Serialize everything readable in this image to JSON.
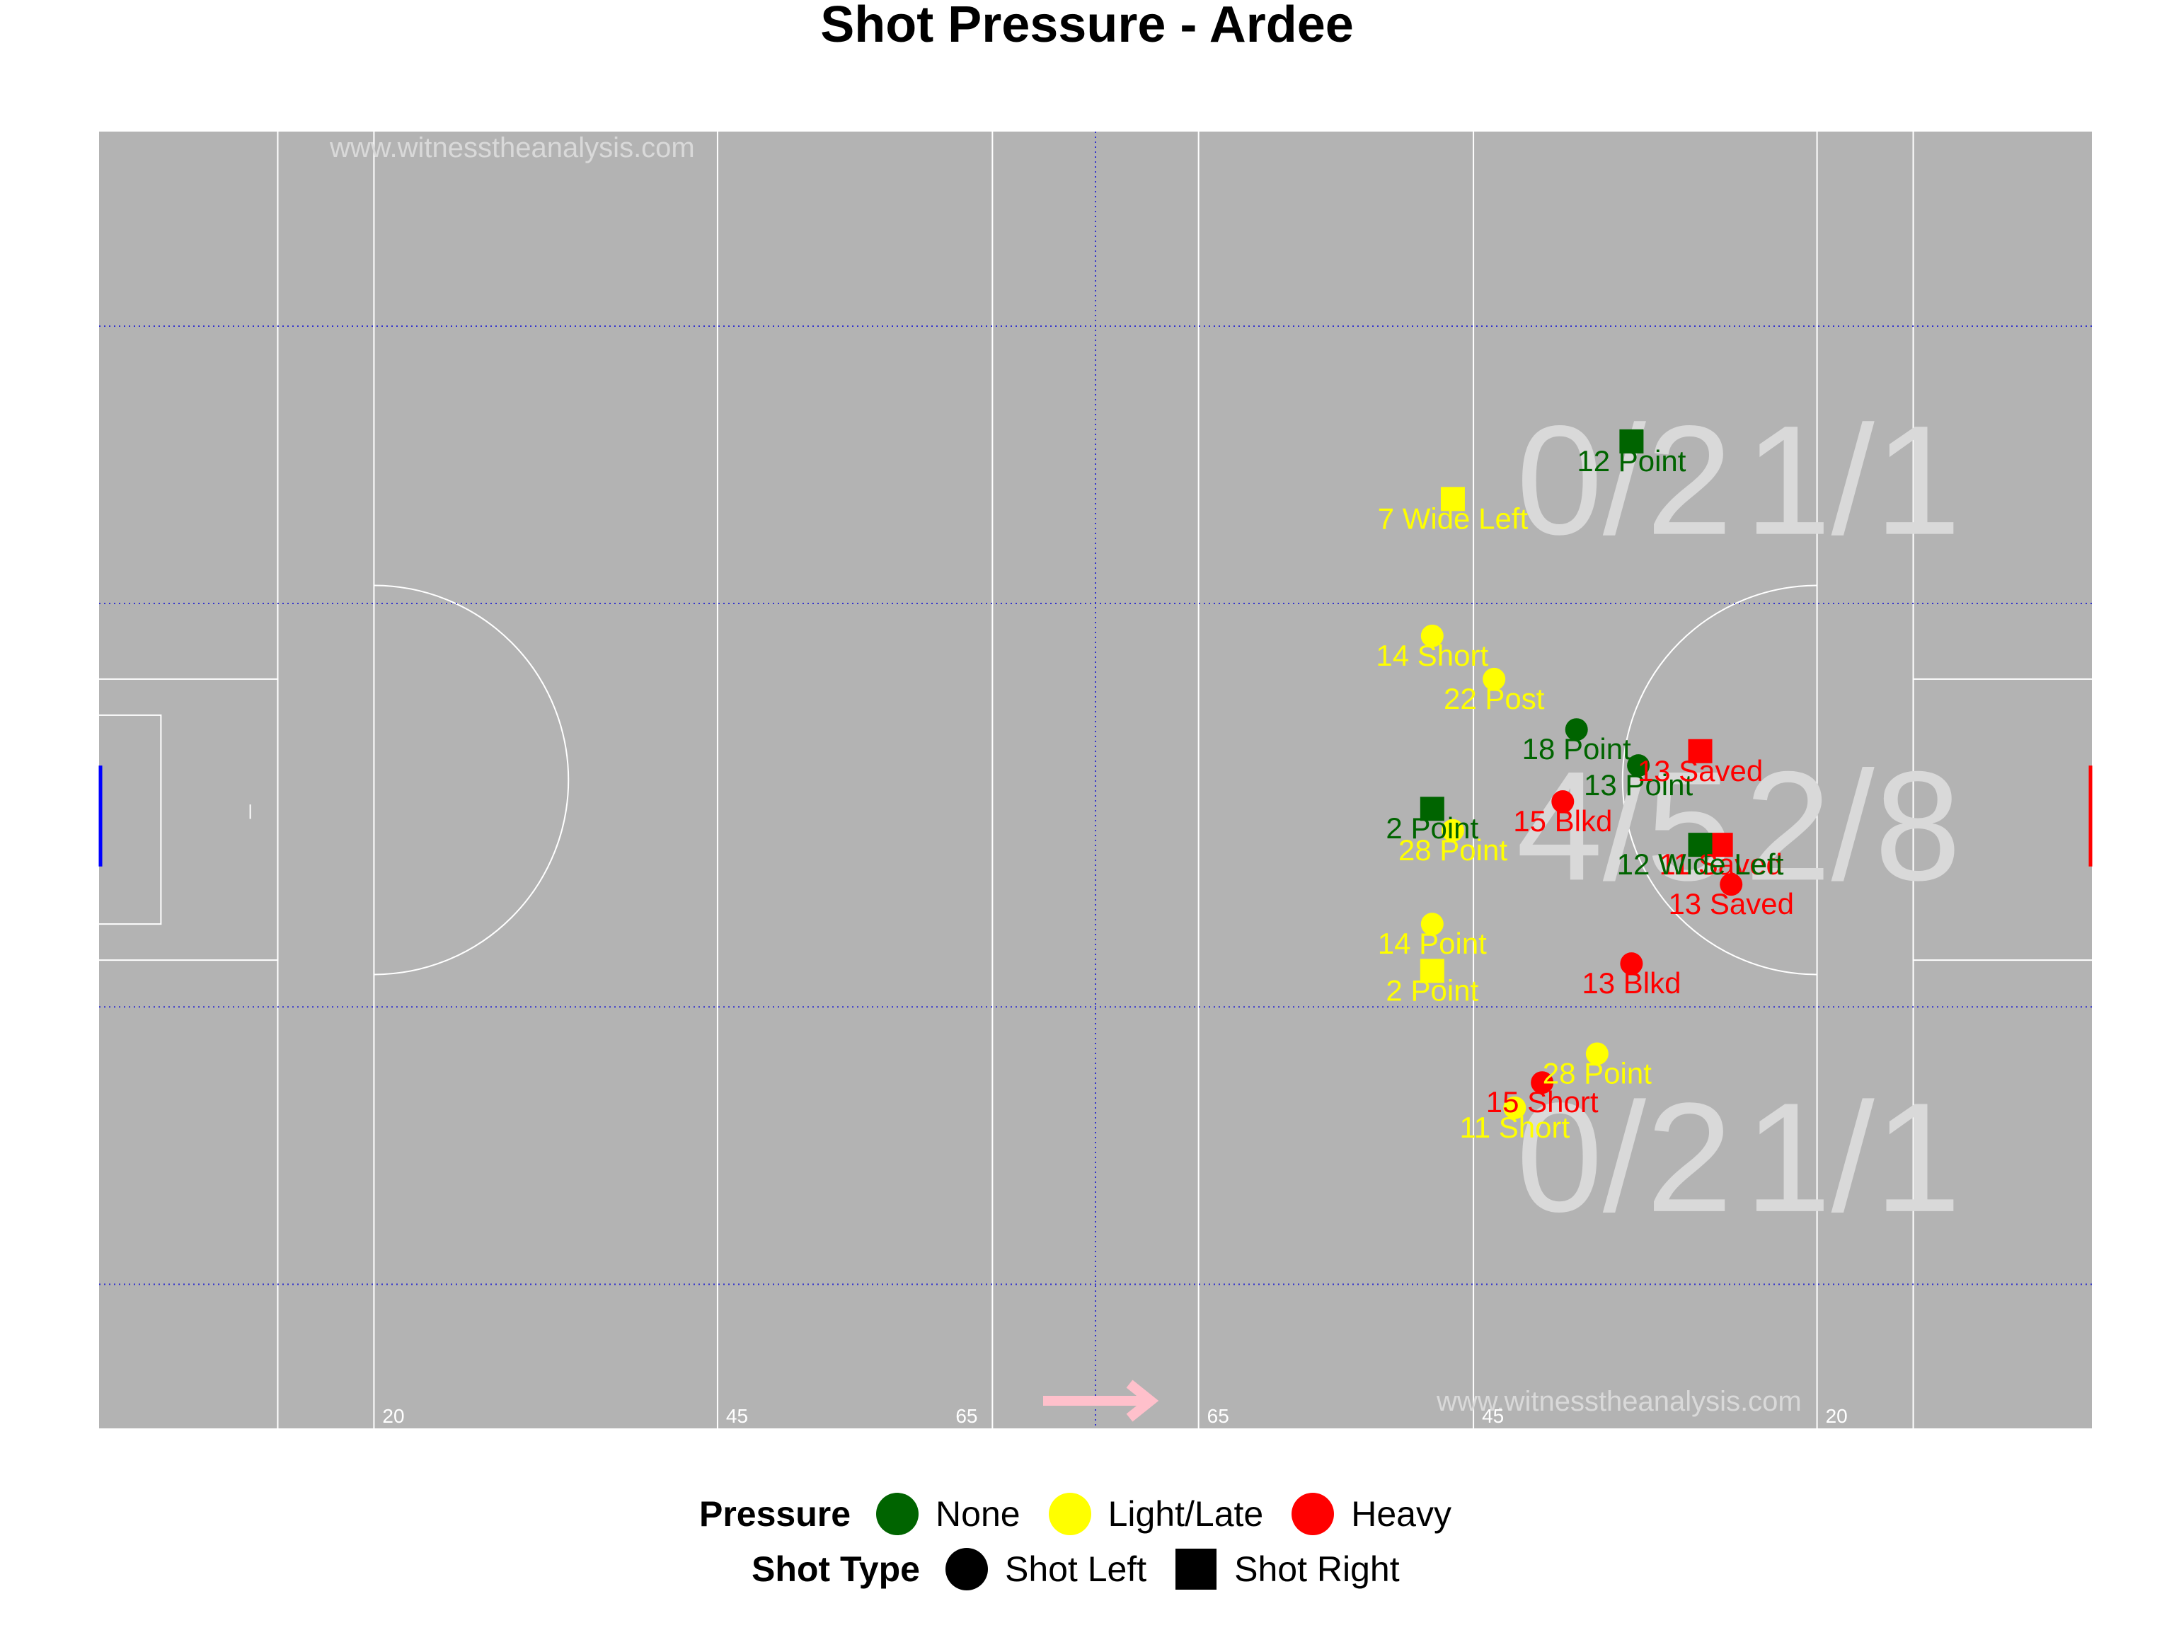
{
  "chart_data": {
    "type": "scatter",
    "title": "Shot Pressure - Ardee",
    "watermark": "www.witnesstheanalysis.com",
    "pitch_distance_labels": [
      "20",
      "45",
      "65",
      "65",
      "45",
      "20"
    ],
    "zone_tallies": [
      {
        "zone": "top-center",
        "text": "0/2"
      },
      {
        "zone": "top-right",
        "text": "1/1"
      },
      {
        "zone": "middle-center",
        "text": "4/5"
      },
      {
        "zone": "middle-right",
        "text": "2/8"
      },
      {
        "zone": "bottom-center",
        "text": "0/2"
      },
      {
        "zone": "bottom-right",
        "text": "1/1"
      }
    ],
    "colors": {
      "None": "#006400",
      "Light/Late": "#FFFF00",
      "Heavy": "#FF0000",
      "pitch": "#B3B3B3"
    },
    "points": [
      {
        "x": 98.5,
        "y": 25.5,
        "label": "7 Wide Left",
        "pressure": "Light/Late",
        "shot": "Shot Right"
      },
      {
        "x": 111.5,
        "y": 21.5,
        "label": "12 Point",
        "pressure": "None",
        "shot": "Shot Right"
      },
      {
        "x": 97.0,
        "y": 35.0,
        "label": "14 Short",
        "pressure": "Light/Late",
        "shot": "Shot Left"
      },
      {
        "x": 101.5,
        "y": 38.0,
        "label": "22 Post",
        "pressure": "Light/Late",
        "shot": "Shot Left"
      },
      {
        "x": 107.5,
        "y": 41.5,
        "label": "18 Point",
        "pressure": "None",
        "shot": "Shot Left"
      },
      {
        "x": 112.0,
        "y": 44.0,
        "label": "13 Point",
        "pressure": "None",
        "shot": "Shot Left"
      },
      {
        "x": 116.5,
        "y": 43.0,
        "label": "13 Saved",
        "pressure": "Heavy",
        "shot": "Shot Right"
      },
      {
        "x": 97.0,
        "y": 47.0,
        "label": "2 Point",
        "pressure": "None",
        "shot": "Shot Right"
      },
      {
        "x": 98.5,
        "y": 48.5,
        "label": "28 Point",
        "pressure": "Light/Late",
        "shot": "Shot Left"
      },
      {
        "x": 106.5,
        "y": 46.5,
        "label": "15 Blkd",
        "pressure": "Heavy",
        "shot": "Shot Left"
      },
      {
        "x": 118.0,
        "y": 49.5,
        "label": "11 Saved",
        "pressure": "Heavy",
        "shot": "Shot Right"
      },
      {
        "x": 116.5,
        "y": 49.5,
        "label": "12 Wide Left",
        "pressure": "None",
        "shot": "Shot Right"
      },
      {
        "x": 118.75,
        "y": 52.25,
        "label": "13 Saved",
        "pressure": "Heavy",
        "shot": "Shot Left"
      },
      {
        "x": 97.0,
        "y": 55.0,
        "label": "14 Point",
        "pressure": "Light/Late",
        "shot": "Shot Left"
      },
      {
        "x": 97.0,
        "y": 58.25,
        "label": "2 Point",
        "pressure": "Light/Late",
        "shot": "Shot Right"
      },
      {
        "x": 111.5,
        "y": 57.75,
        "label": "13 Blkd",
        "pressure": "Heavy",
        "shot": "Shot Left"
      },
      {
        "x": 109.0,
        "y": 64.0,
        "label": "28 Point",
        "pressure": "Light/Late",
        "shot": "Shot Left"
      },
      {
        "x": 105.0,
        "y": 66.0,
        "label": "15 Short",
        "pressure": "Heavy",
        "shot": "Shot Left"
      },
      {
        "x": 103.0,
        "y": 67.75,
        "label": "11 Short",
        "pressure": "Light/Late",
        "shot": "Shot Left"
      }
    ],
    "xlim": [
      0,
      145
    ],
    "ylim": [
      0,
      90
    ],
    "grid": "dotted-blue",
    "legend_placement": "bottom"
  },
  "legend": {
    "pressure_title": "Pressure",
    "pressure_items": [
      {
        "label": "None",
        "color": "#006400"
      },
      {
        "label": "Light/Late",
        "color": "#FFFF00"
      },
      {
        "label": "Heavy",
        "color": "#FF0000"
      }
    ],
    "shot_title": "Shot Type",
    "shot_items": [
      {
        "label": "Shot Left",
        "icon": "circle-icon"
      },
      {
        "label": "Shot Right",
        "icon": "square-icon"
      }
    ]
  }
}
